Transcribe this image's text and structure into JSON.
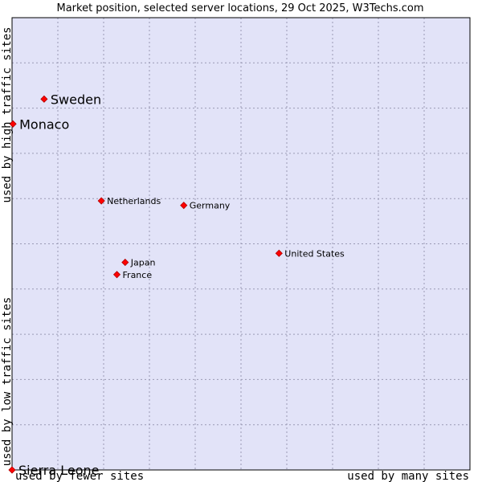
{
  "chart_data": {
    "type": "scatter",
    "title": "Market position, selected server locations, 29 Oct 2025, W3Techs.com",
    "xlabel_low": "used by fewer sites",
    "xlabel_high": "used by many sites",
    "ylabel_low": "used by low traffic sites",
    "ylabel_high": "used by high traffic sites",
    "xlim": [
      0,
      1
    ],
    "ylim": [
      0,
      1
    ],
    "grid": true,
    "colors": {
      "plot_bg": "#e2e3f8",
      "grid": "#9a9ab4",
      "point": "#ff0000",
      "frame": "#000000"
    },
    "points": [
      {
        "name": "Sweden",
        "x": 0.07,
        "y": 0.82,
        "emphasis": true
      },
      {
        "name": "Monaco",
        "x": 0.002,
        "y": 0.765,
        "emphasis": true
      },
      {
        "name": "Netherlands",
        "x": 0.195,
        "y": 0.595,
        "emphasis": false
      },
      {
        "name": "Germany",
        "x": 0.375,
        "y": 0.585,
        "emphasis": false
      },
      {
        "name": "United States",
        "x": 0.583,
        "y": 0.479,
        "emphasis": false
      },
      {
        "name": "Japan",
        "x": 0.247,
        "y": 0.459,
        "emphasis": false
      },
      {
        "name": "France",
        "x": 0.229,
        "y": 0.432,
        "emphasis": false
      },
      {
        "name": "Sierra Leone",
        "x": 0.0,
        "y": 0.0,
        "emphasis": true
      }
    ]
  }
}
